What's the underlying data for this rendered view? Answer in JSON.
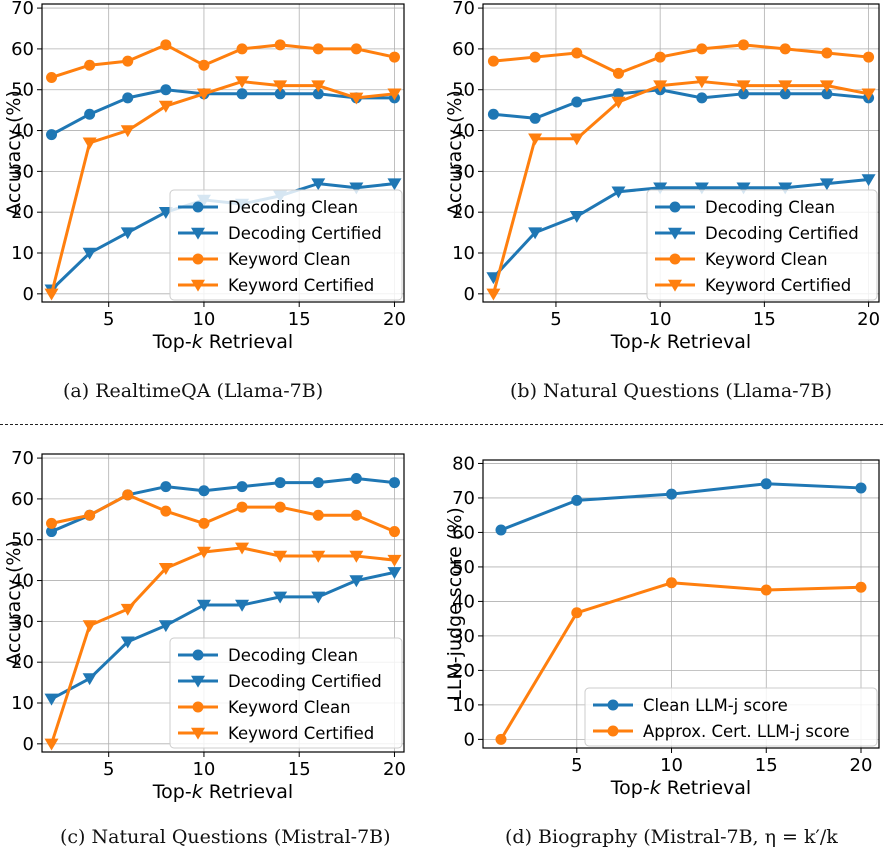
{
  "colors": {
    "blue": "#1f77b4",
    "orange": "#ff7f0e",
    "grid": "#b0b0b0"
  },
  "chart_data": [
    {
      "type": "line",
      "caption": "(a) RealtimeQA (Llama-7B)",
      "xlabel_prefix": "Top-",
      "xlabel_var": "k",
      "xlabel_suffix": " Retrieval",
      "ylabel": "Accuracy (%)",
      "xlim": [
        1.5,
        20.5
      ],
      "ylim": [
        -2,
        71
      ],
      "xticks": [
        5,
        10,
        15,
        20
      ],
      "yticks": [
        0,
        10,
        20,
        30,
        40,
        50,
        60,
        70
      ],
      "grid": true,
      "legend_position": "lower-right",
      "series": [
        {
          "name": "Decoding Clean",
          "color": "#1f77b4",
          "marker": "circle",
          "x": [
            2,
            4,
            6,
            8,
            10,
            12,
            14,
            16,
            18,
            20
          ],
          "y": [
            39,
            44,
            48,
            50,
            49,
            49,
            49,
            49,
            48,
            48
          ]
        },
        {
          "name": "Decoding Certified",
          "color": "#1f77b4",
          "marker": "triangle-down",
          "x": [
            2,
            4,
            6,
            8,
            10,
            12,
            14,
            16,
            18,
            20
          ],
          "y": [
            1,
            10,
            15,
            20,
            23,
            22,
            24,
            27,
            26,
            27
          ]
        },
        {
          "name": "Keyword Clean",
          "color": "#ff7f0e",
          "marker": "circle",
          "x": [
            2,
            4,
            6,
            8,
            10,
            12,
            14,
            16,
            18,
            20
          ],
          "y": [
            53,
            56,
            57,
            61,
            56,
            60,
            61,
            60,
            60,
            58
          ]
        },
        {
          "name": "Keyword Certified",
          "color": "#ff7f0e",
          "marker": "triangle-down",
          "x": [
            2,
            4,
            6,
            8,
            10,
            12,
            14,
            16,
            18,
            20
          ],
          "y": [
            0,
            37,
            40,
            46,
            49,
            52,
            51,
            51,
            48,
            49
          ]
        }
      ]
    },
    {
      "type": "line",
      "caption": "(b) Natural Questions (Llama-7B)",
      "xlabel_prefix": "Top-",
      "xlabel_var": "k",
      "xlabel_suffix": " Retrieval",
      "ylabel": "Accuracy (%)",
      "xlim": [
        1.5,
        20.5
      ],
      "ylim": [
        -2,
        71
      ],
      "xticks": [
        5,
        10,
        15,
        20
      ],
      "yticks": [
        0,
        10,
        20,
        30,
        40,
        50,
        60,
        70
      ],
      "grid": true,
      "legend_position": "lower-right",
      "series": [
        {
          "name": "Decoding Clean",
          "color": "#1f77b4",
          "marker": "circle",
          "x": [
            2,
            4,
            6,
            8,
            10,
            12,
            14,
            16,
            18,
            20
          ],
          "y": [
            44,
            43,
            47,
            49,
            50,
            48,
            49,
            49,
            49,
            48
          ]
        },
        {
          "name": "Decoding Certified",
          "color": "#1f77b4",
          "marker": "triangle-down",
          "x": [
            2,
            4,
            6,
            8,
            10,
            12,
            14,
            16,
            18,
            20
          ],
          "y": [
            4,
            15,
            19,
            25,
            26,
            26,
            26,
            26,
            27,
            28
          ]
        },
        {
          "name": "Keyword Clean",
          "color": "#ff7f0e",
          "marker": "circle",
          "x": [
            2,
            4,
            6,
            8,
            10,
            12,
            14,
            16,
            18,
            20
          ],
          "y": [
            57,
            58,
            59,
            54,
            58,
            60,
            61,
            60,
            59,
            58
          ]
        },
        {
          "name": "Keyword Certified",
          "color": "#ff7f0e",
          "marker": "triangle-down",
          "x": [
            2,
            4,
            6,
            8,
            10,
            12,
            14,
            16,
            18,
            20
          ],
          "y": [
            0,
            38,
            38,
            47,
            51,
            52,
            51,
            51,
            51,
            49
          ]
        }
      ]
    },
    {
      "type": "line",
      "caption": "(c) Natural Questions (Mistral-7B)",
      "xlabel_prefix": "Top-",
      "xlabel_var": "k",
      "xlabel_suffix": " Retrieval",
      "ylabel": "Accuracy (%)",
      "xlim": [
        1.5,
        20.5
      ],
      "ylim": [
        -2,
        71
      ],
      "xticks": [
        5,
        10,
        15,
        20
      ],
      "yticks": [
        0,
        10,
        20,
        30,
        40,
        50,
        60,
        70
      ],
      "grid": true,
      "legend_position": "lower-right",
      "series": [
        {
          "name": "Decoding Clean",
          "color": "#1f77b4",
          "marker": "circle",
          "x": [
            2,
            4,
            6,
            8,
            10,
            12,
            14,
            16,
            18,
            20
          ],
          "y": [
            52,
            56,
            61,
            63,
            62,
            63,
            64,
            64,
            65,
            64
          ]
        },
        {
          "name": "Decoding Certified",
          "color": "#1f77b4",
          "marker": "triangle-down",
          "x": [
            2,
            4,
            6,
            8,
            10,
            12,
            14,
            16,
            18,
            20
          ],
          "y": [
            11,
            16,
            25,
            29,
            34,
            34,
            36,
            36,
            40,
            42
          ]
        },
        {
          "name": "Keyword Clean",
          "color": "#ff7f0e",
          "marker": "circle",
          "x": [
            2,
            4,
            6,
            8,
            10,
            12,
            14,
            16,
            18,
            20
          ],
          "y": [
            54,
            56,
            61,
            57,
            54,
            58,
            58,
            56,
            56,
            52
          ]
        },
        {
          "name": "Keyword Certified",
          "color": "#ff7f0e",
          "marker": "triangle-down",
          "x": [
            2,
            4,
            6,
            8,
            10,
            12,
            14,
            16,
            18,
            20
          ],
          "y": [
            0,
            29,
            33,
            43,
            47,
            48,
            46,
            46,
            46,
            45
          ]
        }
      ]
    },
    {
      "type": "line",
      "caption": "(d) Biography (Mistral-7B, η = k′/k",
      "xlabel_prefix": "Top-",
      "xlabel_var": "k",
      "xlabel_suffix": " Retrieval",
      "ylabel": "LLM-judge score (%)",
      "xlim": [
        0.05,
        20.95
      ],
      "ylim": [
        -2.5,
        81
      ],
      "xticks": [
        5,
        10,
        15,
        20
      ],
      "yticks": [
        0,
        10,
        20,
        30,
        40,
        50,
        60,
        70,
        80
      ],
      "grid": true,
      "legend_position": "lower-right",
      "series": [
        {
          "name": "Clean LLM-j score",
          "color": "#1f77b4",
          "marker": "circle",
          "x": [
            1,
            5,
            10,
            15,
            20
          ],
          "y": [
            60.7,
            69.3,
            71.1,
            74.1,
            72.9
          ]
        },
        {
          "name": "Approx. Cert. LLM-j score",
          "color": "#ff7f0e",
          "marker": "circle",
          "x": [
            1,
            5,
            10,
            15,
            20
          ],
          "y": [
            0,
            36.7,
            45.4,
            43.3,
            44.1
          ]
        }
      ]
    }
  ]
}
